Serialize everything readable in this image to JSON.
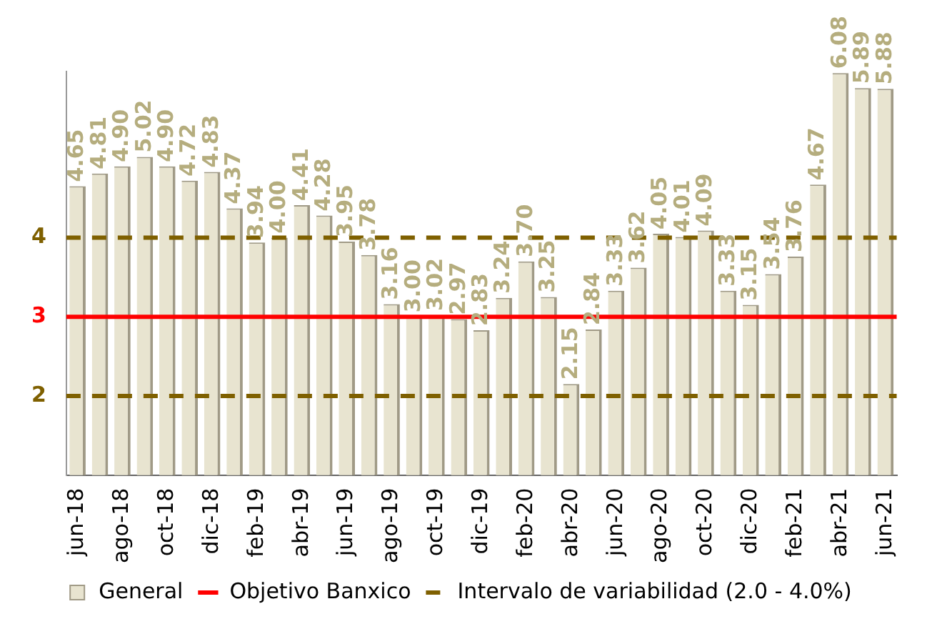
{
  "chart_data": {
    "type": "bar",
    "categories": [
      "jun-18",
      null,
      "ago-18",
      null,
      "oct-18",
      null,
      "dic-18",
      null,
      "feb-19",
      null,
      "abr-19",
      null,
      "jun-19",
      null,
      "ago-19",
      null,
      "oct-19",
      null,
      "dic-19",
      null,
      "feb-20",
      null,
      "abr-20",
      null,
      "jun-20",
      null,
      "ago-20",
      null,
      "oct-20",
      null,
      "dic-20",
      null,
      "feb-21",
      null,
      "abr-21",
      null,
      "jun-21"
    ],
    "series": [
      {
        "name": "General",
        "color": "#e8e4d0",
        "values": [
          4.65,
          4.81,
          4.9,
          5.02,
          4.9,
          4.72,
          4.83,
          4.37,
          3.94,
          4.0,
          4.41,
          4.28,
          3.95,
          3.78,
          3.16,
          3.0,
          3.02,
          2.97,
          2.83,
          3.24,
          3.7,
          3.25,
          2.15,
          2.84,
          3.33,
          3.62,
          4.05,
          4.01,
          4.09,
          3.33,
          3.15,
          3.54,
          3.76,
          4.67,
          6.08,
          5.89,
          5.88
        ],
        "value_labels": [
          "4.65",
          "4.81",
          "4.90",
          "5.02",
          "4.90",
          "4.72",
          "4.83",
          "4.37",
          "3.94",
          "4.00",
          "4.41",
          "4.28",
          "3.95",
          "3.78",
          "3.16",
          "3.00",
          "3.02",
          "2.97",
          "2.83",
          "3.24",
          "3.70",
          "3.25",
          "2.15",
          "2.84",
          "3.33",
          "3.62",
          "4.05",
          "4.01",
          "4.09",
          "3.33",
          "3.15",
          "3.54",
          "3.76",
          "4.67",
          "6.08",
          "5.89",
          "5.88"
        ]
      }
    ],
    "ylim": [
      1,
      6.1
    ],
    "yticks": [
      2,
      3,
      4
    ],
    "ref_lines": [
      {
        "axis": "y",
        "value": 3,
        "label": "Objetivo Banxico",
        "color": "#ff0000",
        "line_style": "solid"
      },
      {
        "axis": "y",
        "value": 4,
        "label": "Intervalo de variabilidad (2.0 - 4.0%)",
        "color": "#7f6000",
        "line_style": "dashed"
      },
      {
        "axis": "y",
        "value": 2,
        "color": "#7f6000",
        "line_style": "dashed"
      }
    ],
    "grid": false,
    "legend": "bottom"
  }
}
